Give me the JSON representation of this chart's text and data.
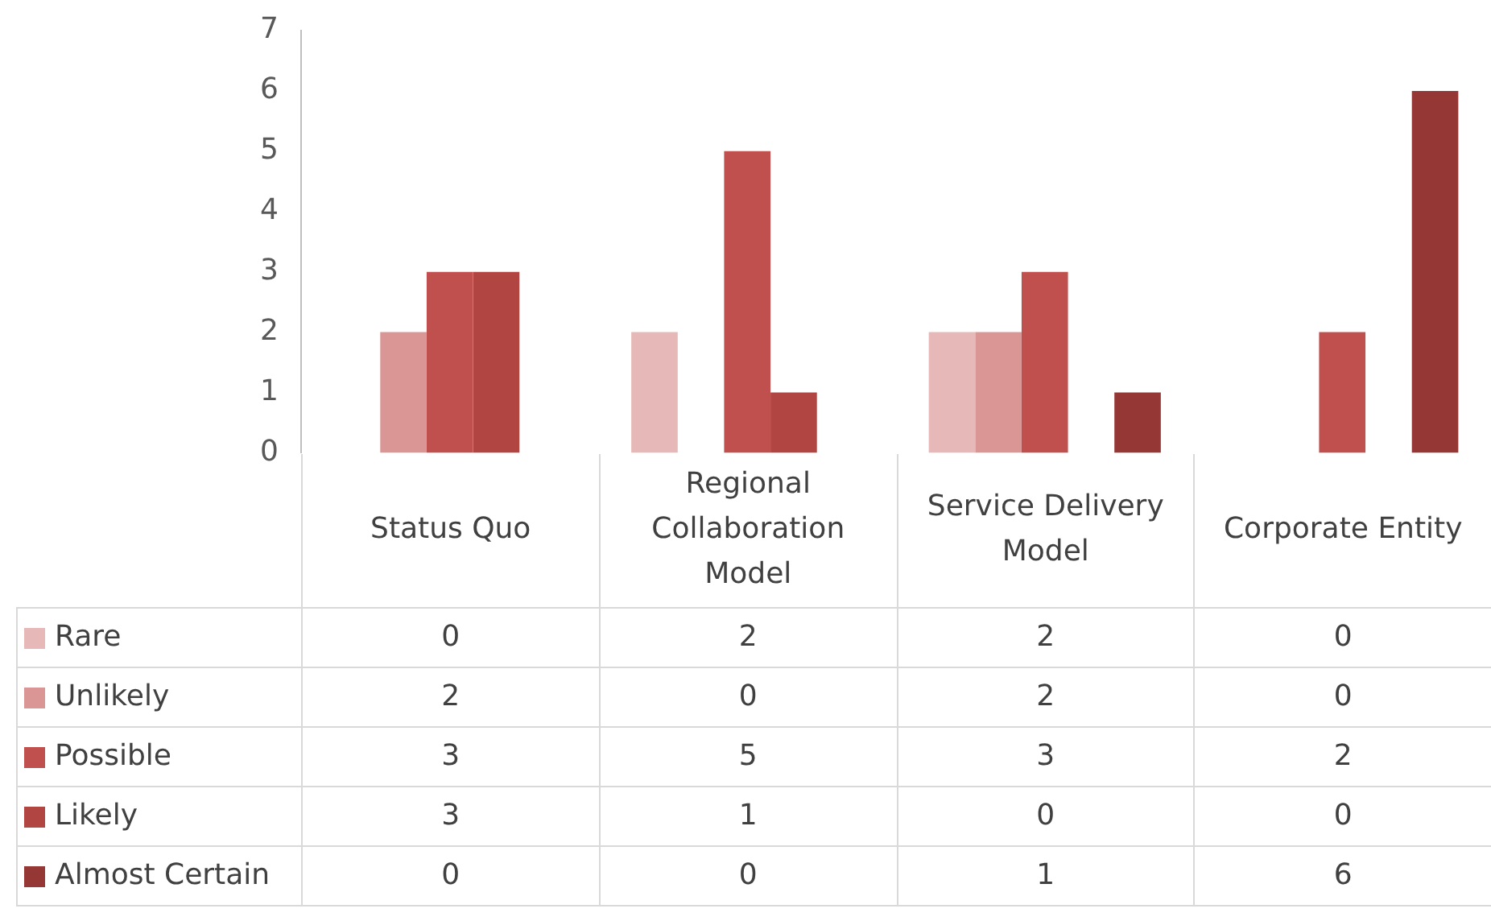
{
  "chart_data": {
    "type": "bar",
    "categories": [
      "Status Quo",
      "Regional Collaboration Model",
      "Service Delivery Model",
      "Corporate Entity"
    ],
    "series": [
      {
        "name": "Rare",
        "color": "#e6b9b8",
        "values": [
          0,
          2,
          2,
          0
        ]
      },
      {
        "name": "Unlikely",
        "color": "#d99694",
        "values": [
          2,
          0,
          2,
          0
        ]
      },
      {
        "name": "Possible",
        "color": "#c0504d",
        "values": [
          3,
          5,
          3,
          2
        ]
      },
      {
        "name": "Likely",
        "color": "#b04542",
        "values": [
          3,
          1,
          0,
          0
        ]
      },
      {
        "name": "Almost Certain",
        "color": "#953735",
        "values": [
          0,
          0,
          1,
          6
        ]
      }
    ],
    "ylim": [
      0,
      7
    ],
    "yticks": [
      0,
      1,
      2,
      3,
      4,
      5,
      6,
      7
    ],
    "data_labels": true,
    "legend": "bottom left"
  }
}
